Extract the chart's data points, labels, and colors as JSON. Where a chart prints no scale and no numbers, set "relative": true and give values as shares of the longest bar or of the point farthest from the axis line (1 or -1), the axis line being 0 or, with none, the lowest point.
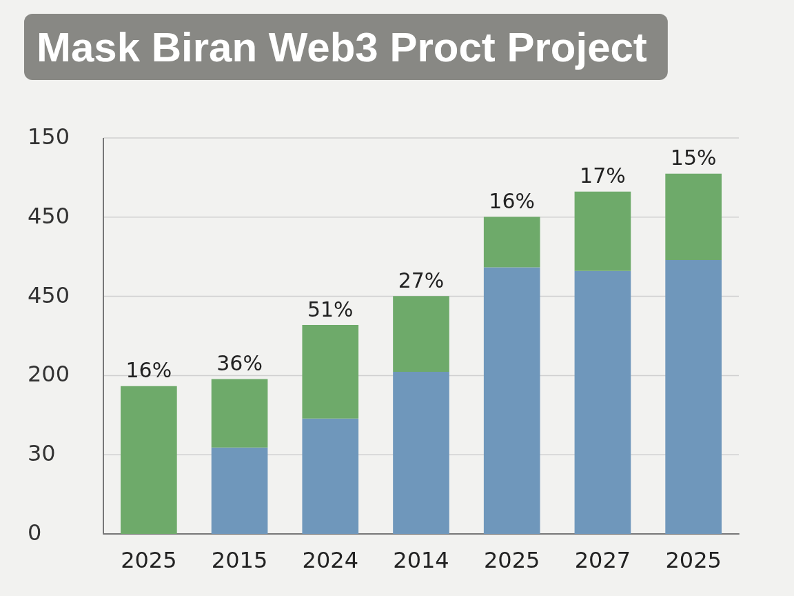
{
  "chart_data": {
    "type": "bar",
    "title": "Mask Biran Web3 Proct Project",
    "stacked": true,
    "grid": "y",
    "relative": true,
    "categories": [
      "2025",
      "2015",
      "2024",
      "2014",
      "2025",
      "2027",
      "2025"
    ],
    "annotations": [
      "150",
      "450",
      "450",
      "200",
      "30",
      "0",
      "16%",
      "36%",
      "51%",
      "27%",
      "16%",
      "17%",
      "15%"
    ],
    "series": [
      {
        "color": "#6f97bb",
        "values": [
          0,
          0.24,
          0.32,
          0.45,
          0.74,
          0.73,
          0.76
        ]
      },
      {
        "color": "#6eaa6a",
        "values": [
          0.41,
          0.19,
          0.26,
          0.21,
          0.14,
          0.22,
          0.24
        ]
      }
    ]
  }
}
